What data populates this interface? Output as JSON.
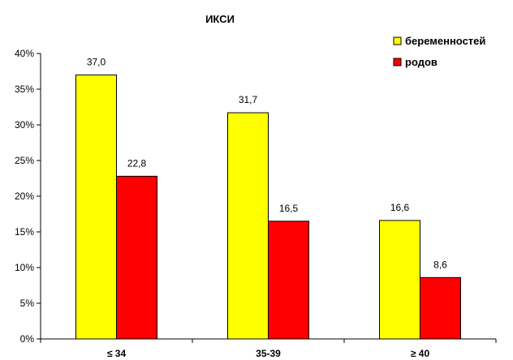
{
  "chart_data": {
    "type": "bar",
    "title": "ИКСИ",
    "categories": [
      "≤ 34",
      "35-39",
      "≥ 40"
    ],
    "series": [
      {
        "name": "беременностей",
        "values": [
          37.0,
          31.7,
          16.6
        ],
        "color": "#FFFF00",
        "labels": [
          "37,0",
          "31,7",
          "16,6"
        ]
      },
      {
        "name": "родов",
        "values": [
          22.8,
          16.5,
          8.6
        ],
        "color": "#FF0000",
        "labels": [
          "22,8",
          "16,5",
          "8,6"
        ]
      }
    ],
    "y_ticks": [
      "0%",
      "5%",
      "10%",
      "15%",
      "20%",
      "25%",
      "30%",
      "35%",
      "40%"
    ],
    "ylim": [
      0,
      40
    ],
    "grid": false,
    "legend_position": "top-right"
  }
}
